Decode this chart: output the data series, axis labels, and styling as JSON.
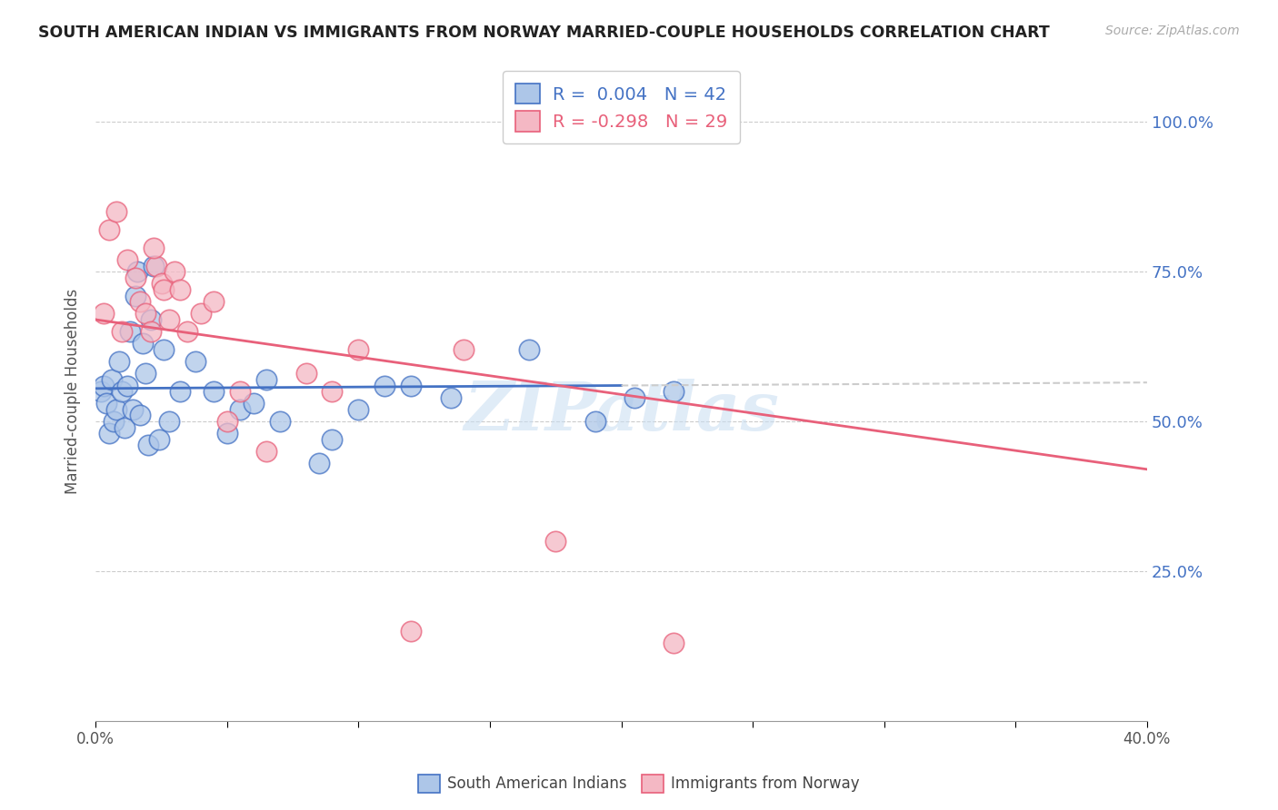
{
  "title": "SOUTH AMERICAN INDIAN VS IMMIGRANTS FROM NORWAY MARRIED-COUPLE HOUSEHOLDS CORRELATION CHART",
  "source": "Source: ZipAtlas.com",
  "ylabel": "Married-couple Households",
  "xlim": [
    0,
    40
  ],
  "ylim": [
    0,
    110
  ],
  "blue_R": 0.004,
  "blue_N": 42,
  "pink_R": -0.298,
  "pink_N": 29,
  "blue_color": "#adc6e8",
  "blue_line_color": "#4472c4",
  "pink_color": "#f4b8c4",
  "pink_line_color": "#e8607a",
  "blue_scatter_x": [
    0.2,
    0.3,
    0.4,
    0.5,
    0.6,
    0.7,
    0.8,
    0.9,
    1.0,
    1.1,
    1.2,
    1.3,
    1.4,
    1.5,
    1.6,
    1.7,
    1.8,
    1.9,
    2.0,
    2.1,
    2.2,
    2.4,
    2.6,
    2.8,
    3.2,
    3.8,
    4.5,
    5.5,
    6.5,
    8.5,
    11.0,
    13.5,
    16.5,
    19.0,
    20.5,
    22.0,
    5.0,
    6.0,
    7.0,
    9.0,
    10.0,
    12.0
  ],
  "blue_scatter_y": [
    55,
    56,
    53,
    48,
    57,
    50,
    52,
    60,
    55,
    49,
    56,
    65,
    52,
    71,
    75,
    51,
    63,
    58,
    46,
    67,
    76,
    47,
    62,
    50,
    55,
    60,
    55,
    52,
    57,
    43,
    56,
    54,
    62,
    50,
    54,
    55,
    48,
    53,
    50,
    47,
    52,
    56
  ],
  "pink_scatter_x": [
    0.3,
    0.5,
    0.8,
    1.0,
    1.2,
    1.5,
    1.7,
    1.9,
    2.1,
    2.3,
    2.5,
    2.8,
    3.0,
    3.5,
    4.0,
    4.5,
    5.0,
    5.5,
    6.5,
    8.0,
    10.0,
    12.0,
    14.0,
    17.5,
    22.0,
    2.2,
    2.6,
    3.2,
    9.0
  ],
  "pink_scatter_y": [
    68,
    82,
    85,
    65,
    77,
    74,
    70,
    68,
    65,
    76,
    73,
    67,
    75,
    65,
    68,
    70,
    50,
    55,
    45,
    58,
    62,
    15,
    62,
    30,
    13,
    79,
    72,
    72,
    55
  ],
  "blue_regression_start_x": 0,
  "blue_regression_end_solid": 20,
  "blue_regression_end_dashed": 40,
  "blue_regression_y_at_0": 55.5,
  "blue_regression_y_at_40": 56.5,
  "pink_regression_y_at_0": 67.0,
  "pink_regression_y_at_40": 42.0,
  "legend_blue_label": "South American Indians",
  "legend_pink_label": "Immigrants from Norway",
  "watermark": "ZIPatlas",
  "background_color": "#ffffff",
  "grid_color": "#cccccc",
  "title_color": "#222222",
  "axis_label_color": "#555555",
  "right_axis_color": "#4472c4",
  "legend_R_color": "#4472c4",
  "xtick_positions": [
    0,
    5,
    10,
    15,
    20,
    25,
    30,
    35,
    40
  ],
  "xtick_labels": [
    "0.0%",
    "",
    "",
    "",
    "",
    "",
    "",
    "",
    "40.0%"
  ],
  "ytick_right": [
    25,
    50,
    75,
    100
  ],
  "ytick_right_labels": [
    "25.0%",
    "50.0%",
    "75.0%",
    "100.0%"
  ]
}
